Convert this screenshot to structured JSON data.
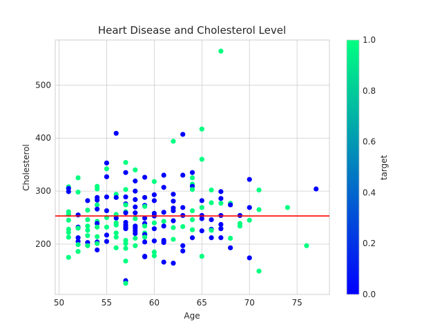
{
  "chart_data": {
    "type": "scatter",
    "title": "Heart Disease and Cholesterol Level",
    "xlabel": "Age",
    "ylabel": "Cholesterol",
    "xlim": [
      49.6,
      78.4
    ],
    "ylim": [
      105,
      585
    ],
    "xticks": [
      "50",
      "55",
      "60",
      "65",
      "70",
      "75"
    ],
    "yticks": [
      "200",
      "300",
      "400",
      "500"
    ],
    "grid": true,
    "reference_line": {
      "y": 253,
      "color": "#ff0000"
    },
    "colorbar": {
      "label": "target",
      "min": 0.0,
      "max": 1.0,
      "ticks": [
        "0.0",
        "0.2",
        "0.4",
        "0.6",
        "0.8",
        "1.0"
      ],
      "colormap": [
        "#0000ff",
        "#00ff80"
      ]
    },
    "points": [
      {
        "x": 51,
        "y": 308,
        "t": 1
      },
      {
        "x": 51,
        "y": 299,
        "t": 0
      },
      {
        "x": 51,
        "y": 305,
        "t": 0
      },
      {
        "x": 51,
        "y": 261,
        "t": 1
      },
      {
        "x": 51,
        "y": 256,
        "t": 1
      },
      {
        "x": 51,
        "y": 245,
        "t": 1
      },
      {
        "x": 51,
        "y": 228,
        "t": 1
      },
      {
        "x": 51,
        "y": 222,
        "t": 1
      },
      {
        "x": 51,
        "y": 213,
        "t": 1
      },
      {
        "x": 51,
        "y": 175,
        "t": 1
      },
      {
        "x": 52,
        "y": 325,
        "t": 1
      },
      {
        "x": 52,
        "y": 298,
        "t": 1
      },
      {
        "x": 52,
        "y": 255,
        "t": 0
      },
      {
        "x": 52,
        "y": 232,
        "t": 0
      },
      {
        "x": 52,
        "y": 230,
        "t": 1
      },
      {
        "x": 52,
        "y": 212,
        "t": 0
      },
      {
        "x": 52,
        "y": 205,
        "t": 0
      },
      {
        "x": 52,
        "y": 199,
        "t": 1
      },
      {
        "x": 52,
        "y": 186,
        "t": 1
      },
      {
        "x": 53,
        "y": 282,
        "t": 0
      },
      {
        "x": 53,
        "y": 264,
        "t": 1
      },
      {
        "x": 53,
        "y": 246,
        "t": 1
      },
      {
        "x": 53,
        "y": 234,
        "t": 1
      },
      {
        "x": 53,
        "y": 226,
        "t": 1
      },
      {
        "x": 53,
        "y": 216,
        "t": 1
      },
      {
        "x": 53,
        "y": 203,
        "t": 0
      },
      {
        "x": 53,
        "y": 197,
        "t": 1
      },
      {
        "x": 54,
        "y": 309,
        "t": 1
      },
      {
        "x": 54,
        "y": 304,
        "t": 1
      },
      {
        "x": 54,
        "y": 288,
        "t": 0
      },
      {
        "x": 54,
        "y": 283,
        "t": 0
      },
      {
        "x": 54,
        "y": 274,
        "t": 1
      },
      {
        "x": 54,
        "y": 266,
        "t": 0
      },
      {
        "x": 54,
        "y": 243,
        "t": 1
      },
      {
        "x": 54,
        "y": 239,
        "t": 0
      },
      {
        "x": 54,
        "y": 232,
        "t": 1
      },
      {
        "x": 54,
        "y": 214,
        "t": 1
      },
      {
        "x": 54,
        "y": 204,
        "t": 0
      },
      {
        "x": 54,
        "y": 201,
        "t": 1
      },
      {
        "x": 54,
        "y": 189,
        "t": 0
      },
      {
        "x": 55,
        "y": 353,
        "t": 0
      },
      {
        "x": 55,
        "y": 342,
        "t": 1
      },
      {
        "x": 55,
        "y": 327,
        "t": 0
      },
      {
        "x": 55,
        "y": 289,
        "t": 0
      },
      {
        "x": 55,
        "y": 263,
        "t": 0
      },
      {
        "x": 55,
        "y": 250,
        "t": 1
      },
      {
        "x": 55,
        "y": 232,
        "t": 1
      },
      {
        "x": 55,
        "y": 217,
        "t": 0
      },
      {
        "x": 55,
        "y": 205,
        "t": 0
      },
      {
        "x": 56,
        "y": 409,
        "t": 0
      },
      {
        "x": 56,
        "y": 294,
        "t": 1
      },
      {
        "x": 56,
        "y": 288,
        "t": 0
      },
      {
        "x": 56,
        "y": 256,
        "t": 1
      },
      {
        "x": 56,
        "y": 249,
        "t": 0
      },
      {
        "x": 56,
        "y": 240,
        "t": 1
      },
      {
        "x": 56,
        "y": 236,
        "t": 1
      },
      {
        "x": 56,
        "y": 221,
        "t": 1
      },
      {
        "x": 56,
        "y": 213,
        "t": 1
      },
      {
        "x": 56,
        "y": 193,
        "t": 1
      },
      {
        "x": 57,
        "y": 354,
        "t": 1
      },
      {
        "x": 57,
        "y": 335,
        "t": 0
      },
      {
        "x": 57,
        "y": 303,
        "t": 1
      },
      {
        "x": 57,
        "y": 289,
        "t": 0
      },
      {
        "x": 57,
        "y": 276,
        "t": 0
      },
      {
        "x": 57,
        "y": 274,
        "t": 1
      },
      {
        "x": 57,
        "y": 261,
        "t": 1
      },
      {
        "x": 57,
        "y": 259,
        "t": 0
      },
      {
        "x": 57,
        "y": 241,
        "t": 0
      },
      {
        "x": 57,
        "y": 236,
        "t": 0
      },
      {
        "x": 57,
        "y": 232,
        "t": 0
      },
      {
        "x": 57,
        "y": 229,
        "t": 0
      },
      {
        "x": 57,
        "y": 207,
        "t": 1
      },
      {
        "x": 57,
        "y": 201,
        "t": 1
      },
      {
        "x": 57,
        "y": 192,
        "t": 1
      },
      {
        "x": 57,
        "y": 168,
        "t": 1
      },
      {
        "x": 57,
        "y": 131,
        "t": 0
      },
      {
        "x": 57,
        "y": 126,
        "t": 1
      },
      {
        "x": 58,
        "y": 340,
        "t": 1
      },
      {
        "x": 58,
        "y": 319,
        "t": 0
      },
      {
        "x": 58,
        "y": 300,
        "t": 0
      },
      {
        "x": 58,
        "y": 284,
        "t": 0
      },
      {
        "x": 58,
        "y": 270,
        "t": 0
      },
      {
        "x": 58,
        "y": 259,
        "t": 0
      },
      {
        "x": 58,
        "y": 248,
        "t": 1
      },
      {
        "x": 58,
        "y": 234,
        "t": 0
      },
      {
        "x": 58,
        "y": 230,
        "t": 0
      },
      {
        "x": 58,
        "y": 225,
        "t": 0
      },
      {
        "x": 58,
        "y": 220,
        "t": 0
      },
      {
        "x": 58,
        "y": 211,
        "t": 1
      },
      {
        "x": 58,
        "y": 197,
        "t": 1
      },
      {
        "x": 59,
        "y": 326,
        "t": 0
      },
      {
        "x": 59,
        "y": 288,
        "t": 0
      },
      {
        "x": 59,
        "y": 273,
        "t": 0
      },
      {
        "x": 59,
        "y": 271,
        "t": 1
      },
      {
        "x": 59,
        "y": 249,
        "t": 0
      },
      {
        "x": 59,
        "y": 239,
        "t": 0
      },
      {
        "x": 59,
        "y": 234,
        "t": 1
      },
      {
        "x": 59,
        "y": 221,
        "t": 1
      },
      {
        "x": 59,
        "y": 218,
        "t": 0
      },
      {
        "x": 59,
        "y": 213,
        "t": 1
      },
      {
        "x": 59,
        "y": 204,
        "t": 0
      },
      {
        "x": 59,
        "y": 177,
        "t": 0
      },
      {
        "x": 59,
        "y": 176,
        "t": 0
      },
      {
        "x": 60,
        "y": 318,
        "t": 1
      },
      {
        "x": 60,
        "y": 293,
        "t": 0
      },
      {
        "x": 60,
        "y": 282,
        "t": 0
      },
      {
        "x": 60,
        "y": 258,
        "t": 0
      },
      {
        "x": 60,
        "y": 253,
        "t": 0
      },
      {
        "x": 60,
        "y": 240,
        "t": 1
      },
      {
        "x": 60,
        "y": 229,
        "t": 0
      },
      {
        "x": 60,
        "y": 206,
        "t": 0
      },
      {
        "x": 60,
        "y": 185,
        "t": 1
      },
      {
        "x": 60,
        "y": 178,
        "t": 1
      },
      {
        "x": 61,
        "y": 330,
        "t": 0
      },
      {
        "x": 61,
        "y": 307,
        "t": 0
      },
      {
        "x": 61,
        "y": 260,
        "t": 0
      },
      {
        "x": 61,
        "y": 243,
        "t": 1
      },
      {
        "x": 61,
        "y": 234,
        "t": 0
      },
      {
        "x": 61,
        "y": 207,
        "t": 0
      },
      {
        "x": 61,
        "y": 203,
        "t": 0
      },
      {
        "x": 61,
        "y": 166,
        "t": 0
      },
      {
        "x": 62,
        "y": 394,
        "t": 1
      },
      {
        "x": 62,
        "y": 294,
        "t": 0
      },
      {
        "x": 62,
        "y": 281,
        "t": 0
      },
      {
        "x": 62,
        "y": 268,
        "t": 0
      },
      {
        "x": 62,
        "y": 263,
        "t": 0
      },
      {
        "x": 62,
        "y": 244,
        "t": 0
      },
      {
        "x": 62,
        "y": 231,
        "t": 1
      },
      {
        "x": 62,
        "y": 209,
        "t": 1
      },
      {
        "x": 62,
        "y": 164,
        "t": 0
      },
      {
        "x": 63,
        "y": 407,
        "t": 0
      },
      {
        "x": 63,
        "y": 330,
        "t": 0
      },
      {
        "x": 63,
        "y": 269,
        "t": 0
      },
      {
        "x": 63,
        "y": 254,
        "t": 0
      },
      {
        "x": 63,
        "y": 233,
        "t": 1
      },
      {
        "x": 63,
        "y": 197,
        "t": 0
      },
      {
        "x": 63,
        "y": 187,
        "t": 0
      },
      {
        "x": 64,
        "y": 335,
        "t": 0
      },
      {
        "x": 64,
        "y": 325,
        "t": 1
      },
      {
        "x": 64,
        "y": 313,
        "t": 1
      },
      {
        "x": 64,
        "y": 309,
        "t": 0
      },
      {
        "x": 64,
        "y": 303,
        "t": 1
      },
      {
        "x": 64,
        "y": 263,
        "t": 1
      },
      {
        "x": 64,
        "y": 246,
        "t": 1
      },
      {
        "x": 64,
        "y": 227,
        "t": 1
      },
      {
        "x": 64,
        "y": 212,
        "t": 0
      },
      {
        "x": 65,
        "y": 417,
        "t": 1
      },
      {
        "x": 65,
        "y": 360,
        "t": 1
      },
      {
        "x": 65,
        "y": 282,
        "t": 0
      },
      {
        "x": 65,
        "y": 269,
        "t": 1
      },
      {
        "x": 65,
        "y": 254,
        "t": 0
      },
      {
        "x": 65,
        "y": 248,
        "t": 0
      },
      {
        "x": 65,
        "y": 225,
        "t": 0
      },
      {
        "x": 65,
        "y": 177,
        "t": 1
      },
      {
        "x": 66,
        "y": 302,
        "t": 1
      },
      {
        "x": 66,
        "y": 278,
        "t": 1
      },
      {
        "x": 66,
        "y": 246,
        "t": 0
      },
      {
        "x": 66,
        "y": 228,
        "t": 0
      },
      {
        "x": 66,
        "y": 226,
        "t": 1
      },
      {
        "x": 66,
        "y": 212,
        "t": 0
      },
      {
        "x": 67,
        "y": 564,
        "t": 1
      },
      {
        "x": 67,
        "y": 299,
        "t": 0
      },
      {
        "x": 67,
        "y": 286,
        "t": 0
      },
      {
        "x": 67,
        "y": 277,
        "t": 1
      },
      {
        "x": 67,
        "y": 254,
        "t": 0
      },
      {
        "x": 67,
        "y": 237,
        "t": 0
      },
      {
        "x": 67,
        "y": 229,
        "t": 0
      },
      {
        "x": 67,
        "y": 212,
        "t": 0
      },
      {
        "x": 68,
        "y": 277,
        "t": 1
      },
      {
        "x": 68,
        "y": 274,
        "t": 0
      },
      {
        "x": 68,
        "y": 211,
        "t": 1
      },
      {
        "x": 68,
        "y": 193,
        "t": 0
      },
      {
        "x": 69,
        "y": 254,
        "t": 1
      },
      {
        "x": 69,
        "y": 254,
        "t": 0
      },
      {
        "x": 69,
        "y": 239,
        "t": 1
      },
      {
        "x": 69,
        "y": 234,
        "t": 1
      },
      {
        "x": 70,
        "y": 322,
        "t": 0
      },
      {
        "x": 70,
        "y": 269,
        "t": 0
      },
      {
        "x": 70,
        "y": 245,
        "t": 1
      },
      {
        "x": 70,
        "y": 174,
        "t": 0
      },
      {
        "x": 71,
        "y": 302,
        "t": 1
      },
      {
        "x": 71,
        "y": 265,
        "t": 1
      },
      {
        "x": 71,
        "y": 149,
        "t": 1
      },
      {
        "x": 74,
        "y": 269,
        "t": 1
      },
      {
        "x": 76,
        "y": 197,
        "t": 1
      },
      {
        "x": 77,
        "y": 304,
        "t": 0
      }
    ]
  }
}
